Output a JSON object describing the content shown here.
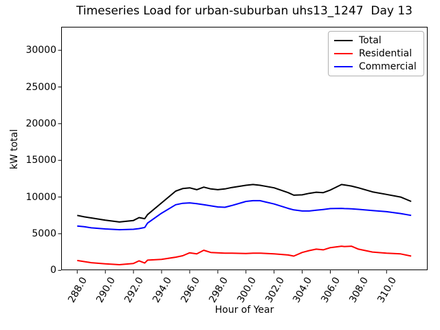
{
  "window": {
    "title": "Timeseries Load for urban-suburban uhs13_1247  Day 13"
  },
  "chart_data": {
    "type": "line",
    "title": "Timeseries Load for urban-suburban uhs13_1247  Day 13",
    "xlabel": "Hour of Year",
    "ylabel": "kW total",
    "xlim": [
      286.86,
      312.92
    ],
    "ylim": [
      0,
      33200
    ],
    "xticks": [
      288,
      290,
      292,
      294,
      296,
      298,
      300,
      302,
      304,
      306,
      308,
      310
    ],
    "xtick_labels": [
      "288.0",
      "290.0",
      "292.0",
      "294.0",
      "296.0",
      "298.0",
      "300.0",
      "302.0",
      "304.0",
      "306.0",
      "308.0",
      "310.0"
    ],
    "xtick_rotation_deg": 60,
    "yticks": [
      0,
      5000,
      10000,
      15000,
      20000,
      25000,
      30000
    ],
    "ytick_labels": [
      "0",
      "5000",
      "10000",
      "15000",
      "20000",
      "25000",
      "30000"
    ],
    "grid": false,
    "legend_position": "upper right",
    "x": [
      288,
      288.5,
      289,
      290,
      291,
      292,
      292.4,
      292.8,
      293,
      294,
      295,
      295.5,
      296,
      296.5,
      297,
      297.5,
      298,
      298.5,
      299,
      300,
      300.5,
      301,
      302,
      303,
      303.4,
      304,
      304.5,
      305,
      305.5,
      306,
      306.8,
      307,
      307.5,
      308,
      309,
      310,
      311,
      311.75
    ],
    "series": [
      {
        "name": "Total",
        "color": "#000000",
        "values": [
          7500,
          7300,
          7150,
          6850,
          6600,
          6800,
          7200,
          7050,
          7600,
          9200,
          10800,
          11150,
          11250,
          11000,
          11350,
          11100,
          11000,
          11100,
          11300,
          11600,
          11700,
          11600,
          11250,
          10600,
          10250,
          10300,
          10500,
          10650,
          10600,
          10950,
          11700,
          11650,
          11500,
          11250,
          10700,
          10350,
          10000,
          9400
        ]
      },
      {
        "name": "Residential",
        "color": "#ff0000",
        "values": [
          1350,
          1200,
          1050,
          900,
          780,
          950,
          1300,
          1000,
          1400,
          1500,
          1800,
          2000,
          2400,
          2250,
          2750,
          2450,
          2400,
          2350,
          2350,
          2300,
          2350,
          2350,
          2250,
          2100,
          1950,
          2450,
          2700,
          2900,
          2800,
          3100,
          3300,
          3250,
          3300,
          2900,
          2500,
          2350,
          2250,
          1950
        ]
      },
      {
        "name": "Commercial",
        "color": "#0000ff",
        "values": [
          6050,
          5950,
          5800,
          5650,
          5550,
          5600,
          5700,
          5850,
          6450,
          7800,
          8950,
          9150,
          9200,
          9100,
          8950,
          8800,
          8650,
          8600,
          8850,
          9400,
          9500,
          9500,
          9050,
          8450,
          8250,
          8100,
          8100,
          8200,
          8300,
          8420,
          8450,
          8420,
          8400,
          8320,
          8150,
          8000,
          7750,
          7500
        ]
      }
    ]
  }
}
